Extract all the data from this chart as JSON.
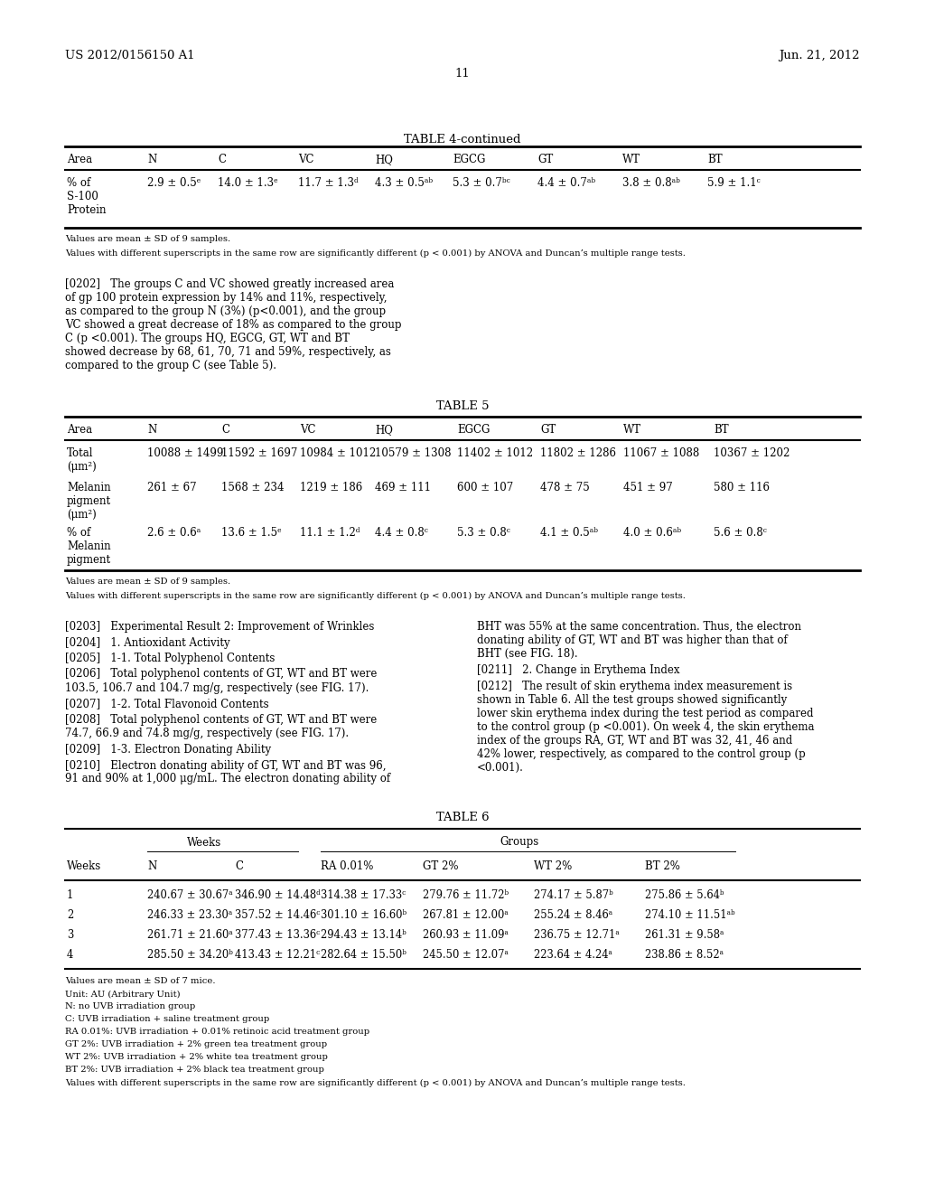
{
  "header_left": "US 2012/0156150 A1",
  "header_right": "Jun. 21, 2012",
  "page_number": "11",
  "table4_title": "TABLE 4-continued",
  "table4_cols": [
    "Area",
    "N",
    "C",
    "VC",
    "HQ",
    "EGCG",
    "GT",
    "WT",
    "BT"
  ],
  "table4_row1": [
    "% of\nS-100\nProtein",
    "2.9 ± 0.5ᵉ",
    "14.0 ± 1.3ᵉ",
    "11.7 ± 1.3ᵈ",
    "4.3 ± 0.5ᵃᵇ",
    "5.3 ± 0.7ᵇᶜ",
    "4.4 ± 0.7ᵃᵇ",
    "3.8 ± 0.8ᵃᵇ",
    "5.9 ± 1.1ᶜ"
  ],
  "table4_footnote1": "Values are mean ± SD of 9 samples.",
  "table4_footnote2": "Values with different superscripts in the same row are significantly different (p < 0.001) by ANOVA and Duncan’s multiple range tests.",
  "table5_title": "TABLE 5",
  "table5_cols": [
    "Area",
    "N",
    "C",
    "VC",
    "HQ",
    "EGCG",
    "GT",
    "WT",
    "BT"
  ],
  "table5_rows": [
    [
      "Total\n(μm²)",
      "10088 ± 1499",
      "11592 ± 1697",
      "10984 ± 1012",
      "10579 ± 1308",
      "11402 ± 1012",
      "11802 ± 1286",
      "11067 ± 1088",
      "10367 ± 1202"
    ],
    [
      "Melanin\npigment\n(μm²)",
      "261 ± 67",
      "1568 ± 234",
      "1219 ± 186",
      "469 ± 111",
      "600 ± 107",
      "478 ± 75",
      "451 ± 97",
      "580 ± 116"
    ],
    [
      "% of\nMelanin\npigment",
      "2.6 ± 0.6ᵃ",
      "13.6 ± 1.5ᵉ",
      "11.1 ± 1.2ᵈ",
      "4.4 ± 0.8ᶜ",
      "5.3 ± 0.8ᶜ",
      "4.1 ± 0.5ᵃᵇ",
      "4.0 ± 0.6ᵃᵇ",
      "5.6 ± 0.8ᶜ"
    ]
  ],
  "table5_footnote1": "Values are mean ± SD of 9 samples.",
  "table5_footnote2": "Values with different superscripts in the same row are significantly different (p < 0.001) by ANOVA and Duncan’s multiple range tests.",
  "table6_title": "TABLE 6",
  "table6_header2": [
    "Weeks",
    "N",
    "C",
    "RA 0.01%",
    "GT 2%",
    "WT 2%",
    "BT 2%"
  ],
  "table6_rows": [
    [
      "1",
      "240.67 ± 30.67ᵃ",
      "346.90 ± 14.48ᵈ",
      "314.38 ± 17.33ᶜ",
      "279.76 ± 11.72ᵇ",
      "274.17 ± 5.87ᵇ",
      "275.86 ± 5.64ᵇ"
    ],
    [
      "2",
      "246.33 ± 23.30ᵃ",
      "357.52 ± 14.46ᶜ",
      "301.10 ± 16.60ᵇ",
      "267.81 ± 12.00ᵃ",
      "255.24 ± 8.46ᵃ",
      "274.10 ± 11.51ᵃᵇ"
    ],
    [
      "3",
      "261.71 ± 21.60ᵃ",
      "377.43 ± 13.36ᶜ",
      "294.43 ± 13.14ᵇ",
      "260.93 ± 11.09ᵃ",
      "236.75 ± 12.71ᵃ",
      "261.31 ± 9.58ᵃ"
    ],
    [
      "4",
      "285.50 ± 34.20ᵇ",
      "413.43 ± 12.21ᶜ",
      "282.64 ± 15.50ᵇ",
      "245.50 ± 12.07ᵃ",
      "223.64 ± 4.24ᵃ",
      "238.86 ± 8.52ᵃ"
    ]
  ],
  "table6_footnotes": [
    "Values are mean ± SD of 7 mice.",
    "Unit: AU (Arbitrary Unit)",
    "N: no UVB irradiation group",
    "C: UVB irradiation + saline treatment group",
    "RA 0.01%: UVB irradiation + 0.01% retinoic acid treatment group",
    "GT 2%: UVB irradiation + 2% green tea treatment group",
    "WT 2%: UVB irradiation + 2% white tea treatment group",
    "BT 2%: UVB irradiation + 2% black tea treatment group",
    "Values with different superscripts in the same row are significantly different (p < 0.001) by ANOVA and Duncan’s multiple range tests."
  ],
  "bg_color": "#ffffff",
  "text_color": "#000000"
}
